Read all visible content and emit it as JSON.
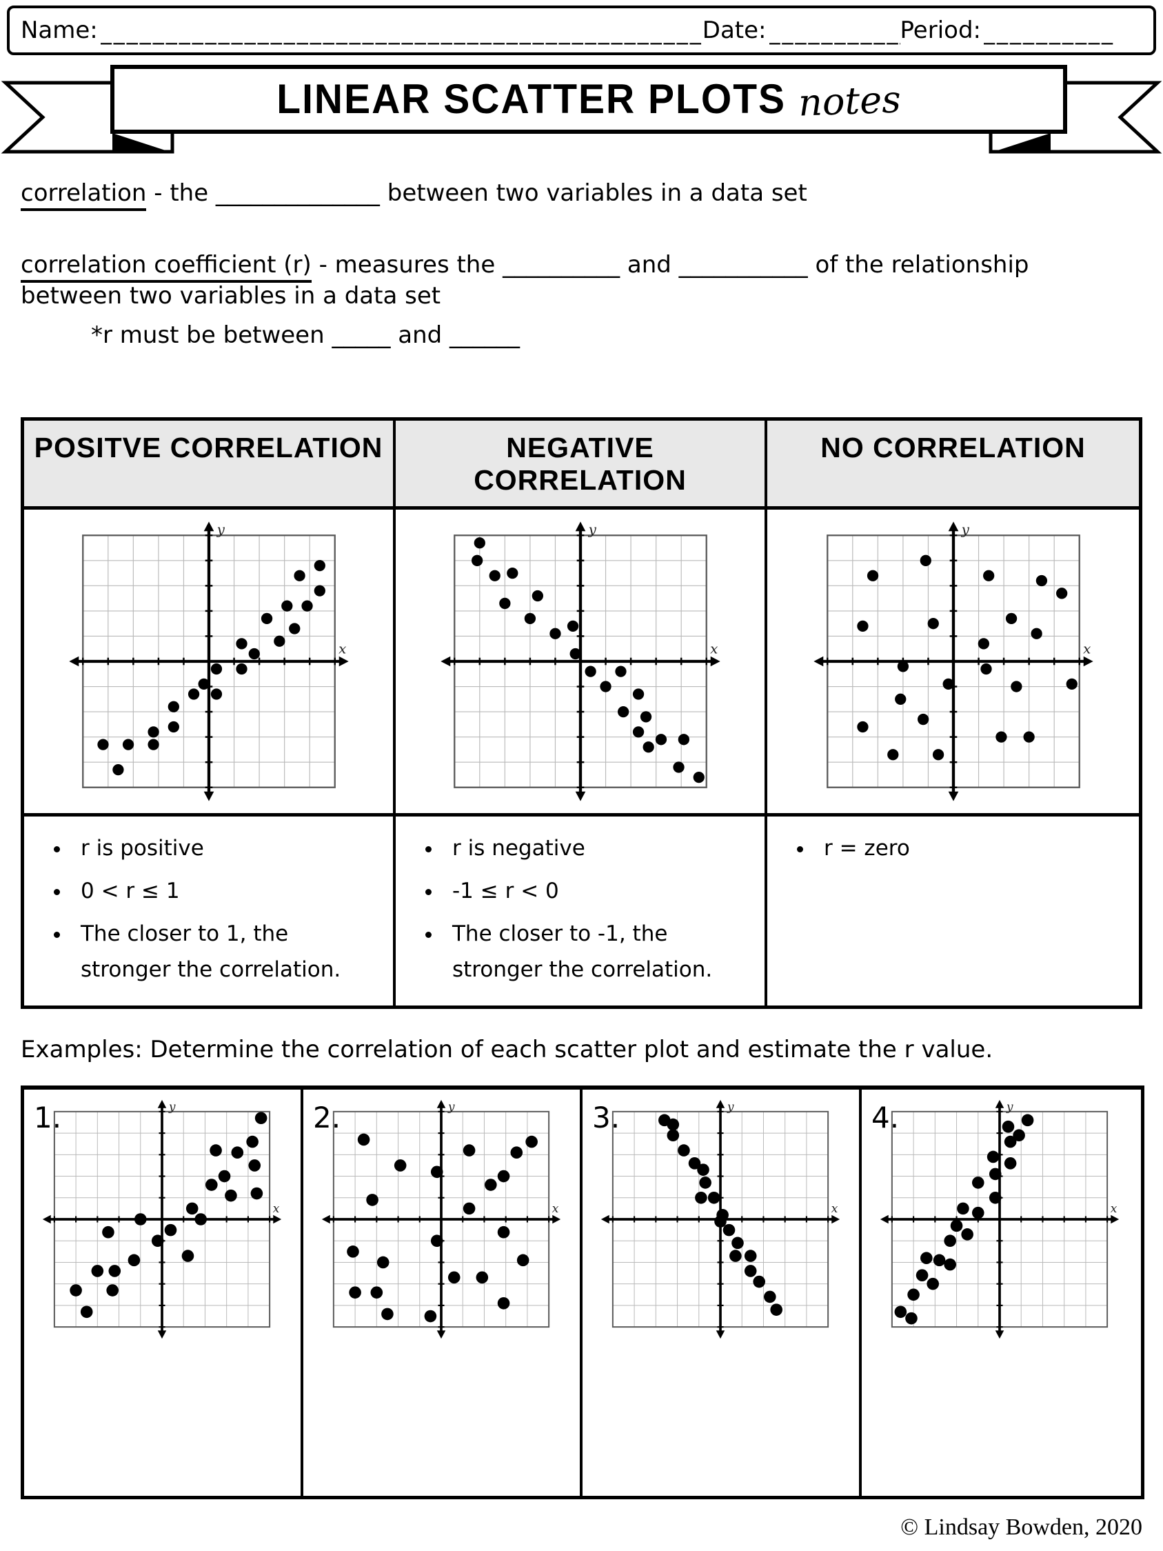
{
  "page": {
    "background": "#ffffff",
    "ink": "#000000",
    "table_header_bg": "#e8e8e8"
  },
  "header": {
    "name_label": "Name:",
    "name_line": "________________________________________________________________",
    "date_label": "Date:",
    "date_line": "____________",
    "period_label": "Period:",
    "period_line": "__________"
  },
  "banner": {
    "title": "LINEAR SCATTER PLOTS",
    "subtitle": "notes"
  },
  "definitions": {
    "correlation": {
      "term": "correlation",
      "rest": " - the ______________ between two variables in a data set"
    },
    "coefficient": {
      "term": "correlation coefficient (r)",
      "rest": " - measures the __________ and ___________ of the relationship between two variables in a data set",
      "note": "*r must be between _____ and ______"
    }
  },
  "notes_table": {
    "columns": [
      {
        "header": "POSITVE CORRELATION",
        "bullets": [
          "r is positive",
          "0 < r ≤ 1",
          "The closer to 1, the stronger the correlation."
        ]
      },
      {
        "header": "NEGATIVE CORRELATION",
        "bullets": [
          "r is negative",
          "-1 ≤ r < 0",
          "The closer to -1, the stronger the correlation."
        ]
      },
      {
        "header": "NO CORRELATION",
        "bullets": [
          "r = zero"
        ]
      }
    ]
  },
  "examples": {
    "prompt": "Examples: Determine the correlation of each scatter plot and estimate the r value.",
    "items": [
      {
        "number": "1."
      },
      {
        "number": "2."
      },
      {
        "number": "3."
      },
      {
        "number": "4."
      }
    ]
  },
  "footer": {
    "credit": "© Lindsay Bowden, 2020"
  },
  "chart_data": [
    {
      "type": "scatter",
      "name": "notes-positive-correlation",
      "xlabel": "x",
      "ylabel": "y",
      "x_range": [
        -5,
        5
      ],
      "y_range": [
        -5,
        5
      ],
      "grid": true,
      "points": [
        [
          -4.2,
          -3.3
        ],
        [
          -3.6,
          -4.3
        ],
        [
          -3.2,
          -3.3
        ],
        [
          -2.2,
          -3.3
        ],
        [
          -2.2,
          -2.8
        ],
        [
          -1.4,
          -2.6
        ],
        [
          -1.4,
          -1.8
        ],
        [
          -0.6,
          -1.3
        ],
        [
          -0.2,
          -0.9
        ],
        [
          0.3,
          -1.3
        ],
        [
          0.3,
          -0.3
        ],
        [
          1.3,
          -0.3
        ],
        [
          1.3,
          0.7
        ],
        [
          1.8,
          0.3
        ],
        [
          2.3,
          1.7
        ],
        [
          2.8,
          0.8
        ],
        [
          3.1,
          2.2
        ],
        [
          3.4,
          1.3
        ],
        [
          3.6,
          3.4
        ],
        [
          3.9,
          2.2
        ],
        [
          4.4,
          3.8
        ],
        [
          4.4,
          2.8
        ]
      ]
    },
    {
      "type": "scatter",
      "name": "notes-negative-correlation",
      "xlabel": "x",
      "ylabel": "y",
      "x_range": [
        -5,
        5
      ],
      "y_range": [
        -5,
        5
      ],
      "grid": true,
      "points": [
        [
          -4.0,
          4.7
        ],
        [
          -4.1,
          4.0
        ],
        [
          -3.4,
          3.4
        ],
        [
          -2.7,
          3.5
        ],
        [
          -3.0,
          2.3
        ],
        [
          -1.7,
          2.6
        ],
        [
          -2.0,
          1.7
        ],
        [
          -1.0,
          1.1
        ],
        [
          -0.3,
          1.4
        ],
        [
          -0.2,
          0.3
        ],
        [
          0.4,
          -0.4
        ],
        [
          1.6,
          -0.4
        ],
        [
          1.0,
          -1.0
        ],
        [
          1.7,
          -2.0
        ],
        [
          2.3,
          -1.3
        ],
        [
          2.6,
          -2.2
        ],
        [
          2.3,
          -2.8
        ],
        [
          2.7,
          -3.4
        ],
        [
          3.2,
          -3.1
        ],
        [
          4.1,
          -3.1
        ],
        [
          3.9,
          -4.2
        ],
        [
          4.7,
          -4.6
        ]
      ]
    },
    {
      "type": "scatter",
      "name": "notes-no-correlation",
      "xlabel": "x",
      "ylabel": "y",
      "x_range": [
        -5,
        5
      ],
      "y_range": [
        -5,
        5
      ],
      "grid": true,
      "points": [
        [
          -1.1,
          4.0
        ],
        [
          -3.2,
          3.4
        ],
        [
          1.4,
          3.4
        ],
        [
          3.5,
          3.2
        ],
        [
          4.3,
          2.7
        ],
        [
          -3.6,
          1.4
        ],
        [
          -0.8,
          1.5
        ],
        [
          2.3,
          1.7
        ],
        [
          3.3,
          1.1
        ],
        [
          1.2,
          0.7
        ],
        [
          -2.0,
          -0.2
        ],
        [
          1.3,
          -0.3
        ],
        [
          -0.2,
          -0.9
        ],
        [
          2.5,
          -1.0
        ],
        [
          4.7,
          -0.9
        ],
        [
          -2.1,
          -1.5
        ],
        [
          -1.2,
          -2.3
        ],
        [
          -3.6,
          -2.6
        ],
        [
          1.9,
          -3.0
        ],
        [
          3.0,
          -3.0
        ],
        [
          -2.4,
          -3.7
        ],
        [
          -0.6,
          -3.7
        ]
      ]
    },
    {
      "type": "scatter",
      "name": "example-1",
      "xlabel": "x",
      "ylabel": "y",
      "x_range": [
        -5,
        5
      ],
      "y_range": [
        -5,
        5
      ],
      "grid": true,
      "points": [
        [
          -4.0,
          -3.3
        ],
        [
          -3.5,
          -4.3
        ],
        [
          -3.0,
          -2.4
        ],
        [
          -2.5,
          -0.6
        ],
        [
          -2.3,
          -3.3
        ],
        [
          -2.2,
          -2.4
        ],
        [
          -1.3,
          -1.9
        ],
        [
          -1.0,
          0.0
        ],
        [
          -0.2,
          -1.0
        ],
        [
          0.4,
          -0.5
        ],
        [
          1.2,
          -1.7
        ],
        [
          1.4,
          0.5
        ],
        [
          1.8,
          0.0
        ],
        [
          2.3,
          1.6
        ],
        [
          2.5,
          3.2
        ],
        [
          2.9,
          2.0
        ],
        [
          3.2,
          1.1
        ],
        [
          3.5,
          3.1
        ],
        [
          4.2,
          3.6
        ],
        [
          4.3,
          2.5
        ],
        [
          4.4,
          1.2
        ],
        [
          4.6,
          4.7
        ]
      ]
    },
    {
      "type": "scatter",
      "name": "example-2",
      "xlabel": "x",
      "ylabel": "y",
      "x_range": [
        -5,
        5
      ],
      "y_range": [
        -5,
        5
      ],
      "grid": true,
      "points": [
        [
          -3.6,
          3.7
        ],
        [
          -1.9,
          2.5
        ],
        [
          -0.2,
          2.2
        ],
        [
          1.3,
          3.2
        ],
        [
          3.5,
          3.1
        ],
        [
          4.2,
          3.6
        ],
        [
          2.3,
          1.6
        ],
        [
          2.9,
          2.0
        ],
        [
          -3.2,
          0.9
        ],
        [
          1.3,
          0.5
        ],
        [
          -0.2,
          -1.0
        ],
        [
          2.9,
          -0.6
        ],
        [
          -4.1,
          -1.5
        ],
        [
          -2.7,
          -2.0
        ],
        [
          0.6,
          -2.7
        ],
        [
          1.9,
          -2.7
        ],
        [
          3.8,
          -1.9
        ],
        [
          -4.0,
          -3.4
        ],
        [
          -3.0,
          -3.4
        ],
        [
          2.9,
          -3.9
        ],
        [
          -2.5,
          -4.4
        ],
        [
          -0.5,
          -4.5
        ]
      ]
    },
    {
      "type": "scatter",
      "name": "example-3",
      "xlabel": "x",
      "ylabel": "y",
      "x_range": [
        -5,
        5
      ],
      "y_range": [
        -5,
        5
      ],
      "grid": true,
      "points": [
        [
          -2.6,
          4.6
        ],
        [
          -2.2,
          4.4
        ],
        [
          -2.2,
          3.9
        ],
        [
          -1.7,
          3.2
        ],
        [
          -1.2,
          2.6
        ],
        [
          -0.8,
          2.3
        ],
        [
          -0.7,
          1.7
        ],
        [
          -0.9,
          1.0
        ],
        [
          -0.3,
          1.0
        ],
        [
          0.1,
          0.2
        ],
        [
          0.0,
          -0.1
        ],
        [
          0.4,
          -0.5
        ],
        [
          0.8,
          -1.1
        ],
        [
          0.7,
          -1.7
        ],
        [
          1.4,
          -1.7
        ],
        [
          1.4,
          -2.4
        ],
        [
          1.8,
          -2.9
        ],
        [
          2.3,
          -3.6
        ],
        [
          2.6,
          -4.2
        ]
      ]
    },
    {
      "type": "scatter",
      "name": "example-4",
      "xlabel": "x",
      "ylabel": "y",
      "x_range": [
        -5,
        5
      ],
      "y_range": [
        -5,
        5
      ],
      "grid": true,
      "points": [
        [
          -4.6,
          -4.3
        ],
        [
          -4.1,
          -4.6
        ],
        [
          -4.0,
          -3.5
        ],
        [
          -3.6,
          -2.6
        ],
        [
          -3.1,
          -3.0
        ],
        [
          -3.4,
          -1.8
        ],
        [
          -2.8,
          -1.9
        ],
        [
          -2.3,
          -2.1
        ],
        [
          -2.3,
          -1.0
        ],
        [
          -2.0,
          -0.3
        ],
        [
          -1.5,
          -0.7
        ],
        [
          -1.7,
          0.5
        ],
        [
          -1.0,
          0.3
        ],
        [
          -1.0,
          1.7
        ],
        [
          -0.2,
          1.0
        ],
        [
          -0.2,
          2.1
        ],
        [
          -0.3,
          2.9
        ],
        [
          0.5,
          2.6
        ],
        [
          0.5,
          3.6
        ],
        [
          0.4,
          4.3
        ],
        [
          0.9,
          3.9
        ],
        [
          1.3,
          4.6
        ]
      ]
    }
  ]
}
